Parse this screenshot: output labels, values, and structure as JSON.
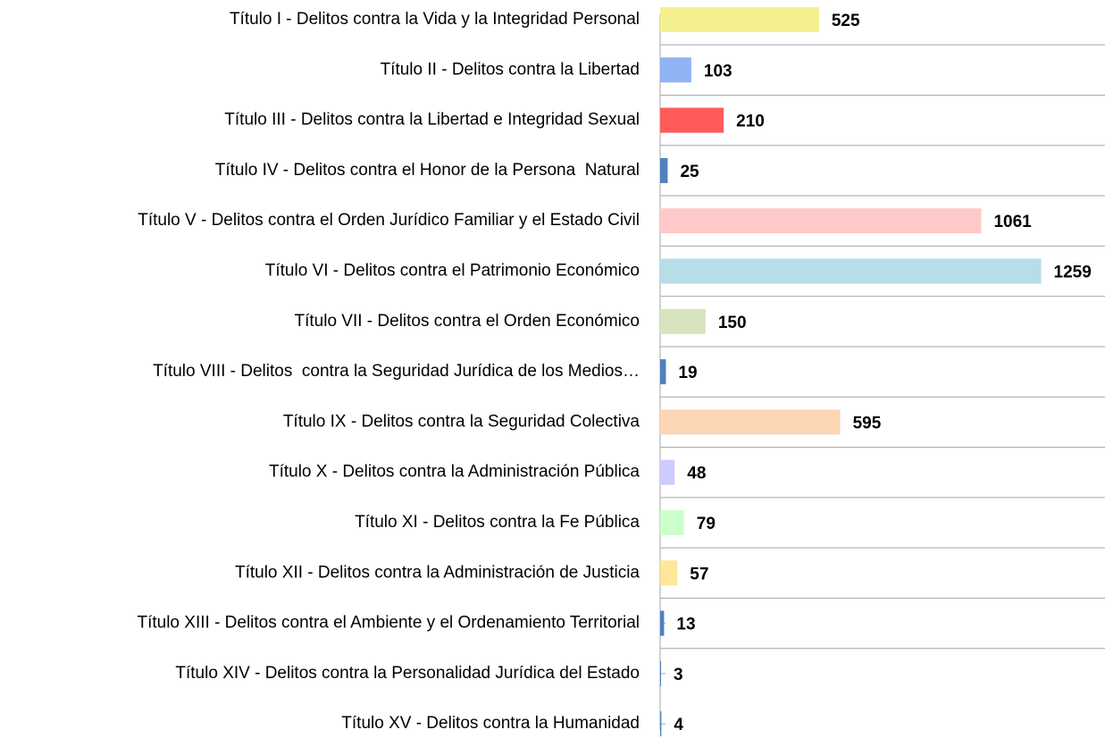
{
  "chart_data": {
    "type": "bar",
    "orientation": "horizontal",
    "categories": [
      "Título I - Delitos contra la Vida y la Integridad Personal",
      "Título II - Delitos contra la Libertad",
      "Título III - Delitos contra la Libertad e Integridad Sexual",
      "Título IV - Delitos contra el Honor de la Persona  Natural",
      "Título V - Delitos contra el Orden Jurídico Familiar y el Estado Civil",
      "Título VI - Delitos contra el Patrimonio Económico",
      "Título VII - Delitos contra el Orden Económico",
      "Título VIII - Delitos  contra la Seguridad Jurídica de los Medios…",
      "Título IX - Delitos contra la Seguridad Colectiva",
      "Título X - Delitos contra la Administración Pública",
      "Título XI - Delitos contra la Fe Pública",
      "Título XII - Delitos contra la Administración de Justicia",
      "Título XIII - Delitos contra el Ambiente y el Ordenamiento Territorial",
      "Título XIV - Delitos contra la Personalidad Jurídica del Estado",
      "Título XV - Delitos contra la Humanidad"
    ],
    "values": [
      525,
      103,
      210,
      25,
      1061,
      1259,
      150,
      19,
      595,
      48,
      79,
      57,
      13,
      3,
      4
    ],
    "colors": [
      "#f5f08f",
      "#8fb4f5",
      "#ff5a5a",
      "#4f81bd",
      "#ffc9c9",
      "#b7dde8",
      "#d7e4bd",
      "#4f81bd",
      "#fcd5b5",
      "#ccccff",
      "#ccffcc",
      "#ffe699",
      "#4f81bd",
      "#4f81bd",
      "#4f81bd"
    ],
    "xlim": [
      0,
      1470
    ],
    "grid": true
  }
}
